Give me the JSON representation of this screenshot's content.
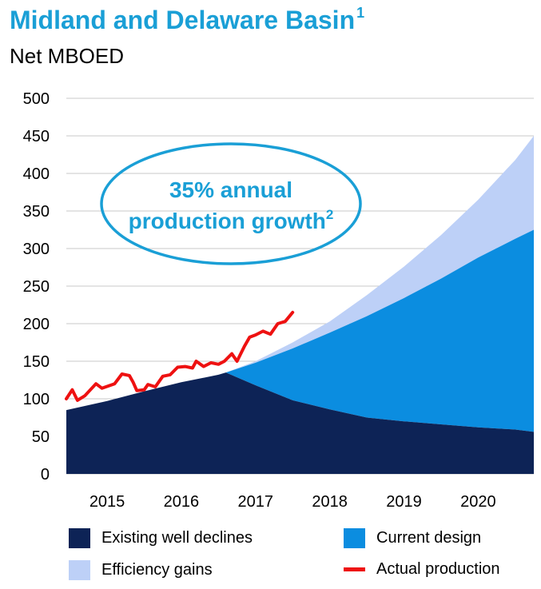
{
  "title": "Midland and Delaware Basin",
  "title_footnote": "1",
  "subtitle": "Net MBOED",
  "annotation": {
    "text_line1": "35% annual",
    "text_line2": "production growth",
    "footnote": "2"
  },
  "colors": {
    "existing": "#0d2356",
    "current": "#0b8de0",
    "efficiency": "#bdd0f7",
    "actual": "#ee1111",
    "annotation": "#1a9fd6",
    "grid": "#c8c8c8"
  },
  "chart_data": {
    "type": "area",
    "title": "Midland and Delaware Basin",
    "ylabel": "Net MBOED",
    "ylim": [
      0,
      500
    ],
    "yticks": [
      0,
      50,
      100,
      150,
      200,
      250,
      300,
      350,
      400,
      450,
      500
    ],
    "xlim": [
      2014.45,
      2020.75
    ],
    "xticks": [
      {
        "label": "2015",
        "pos": 2015.0
      },
      {
        "label": "2016",
        "pos": 2016.0
      },
      {
        "label": "2017",
        "pos": 2017.0
      },
      {
        "label": "2018",
        "pos": 2018.0
      },
      {
        "label": "2019",
        "pos": 2019.0
      },
      {
        "label": "2020",
        "pos": 2020.0
      }
    ],
    "grid": true,
    "legend": "bottom",
    "series": [
      {
        "name": "Existing well declines",
        "key": "existing",
        "x": [
          2014.45,
          2015.0,
          2015.5,
          2016.0,
          2016.5,
          2016.6,
          2017.0,
          2017.5,
          2018.0,
          2018.5,
          2019.0,
          2019.5,
          2020.0,
          2020.5,
          2020.75
        ],
        "y": [
          85,
          97,
          110,
          122,
          132,
          135,
          118,
          98,
          86,
          75,
          70,
          66,
          62,
          59,
          56
        ]
      },
      {
        "name": "Current design",
        "key": "current",
        "x": [
          2016.6,
          2017.0,
          2017.5,
          2018.0,
          2018.5,
          2019.0,
          2019.5,
          2020.0,
          2020.5,
          2020.75
        ],
        "y": [
          135,
          148,
          167,
          188,
          210,
          234,
          260,
          288,
          313,
          325
        ]
      },
      {
        "name": "Efficiency gains",
        "key": "efficiency",
        "x": [
          2016.6,
          2017.0,
          2017.5,
          2018.0,
          2018.5,
          2019.0,
          2019.5,
          2020.0,
          2020.5,
          2020.75
        ],
        "y": [
          135,
          150,
          175,
          203,
          238,
          276,
          318,
          365,
          418,
          450
        ]
      },
      {
        "name": "Actual production",
        "key": "actual",
        "x": [
          2014.45,
          2014.53,
          2014.6,
          2014.7,
          2014.85,
          2014.93,
          2015.1,
          2015.2,
          2015.3,
          2015.35,
          2015.4,
          2015.5,
          2015.55,
          2015.65,
          2015.75,
          2015.85,
          2015.95,
          2016.05,
          2016.15,
          2016.2,
          2016.3,
          2016.4,
          2016.5,
          2016.58,
          2016.68,
          2016.75,
          2016.85,
          2016.92,
          2017.0,
          2017.1,
          2017.2,
          2017.3,
          2017.4,
          2017.5
        ],
        "y": [
          100,
          112,
          98,
          104,
          120,
          114,
          120,
          133,
          131,
          122,
          111,
          112,
          119,
          116,
          130,
          132,
          142,
          143,
          141,
          150,
          143,
          148,
          146,
          150,
          160,
          150,
          170,
          182,
          185,
          190,
          186,
          200,
          203,
          215
        ]
      }
    ]
  },
  "legend": [
    {
      "label": "Existing well declines",
      "key": "existing",
      "shape": "box"
    },
    {
      "label": "Current design",
      "key": "current",
      "shape": "box"
    },
    {
      "label": "Efficiency gains",
      "key": "efficiency",
      "shape": "box"
    },
    {
      "label": "Actual production",
      "key": "actual",
      "shape": "line"
    }
  ]
}
